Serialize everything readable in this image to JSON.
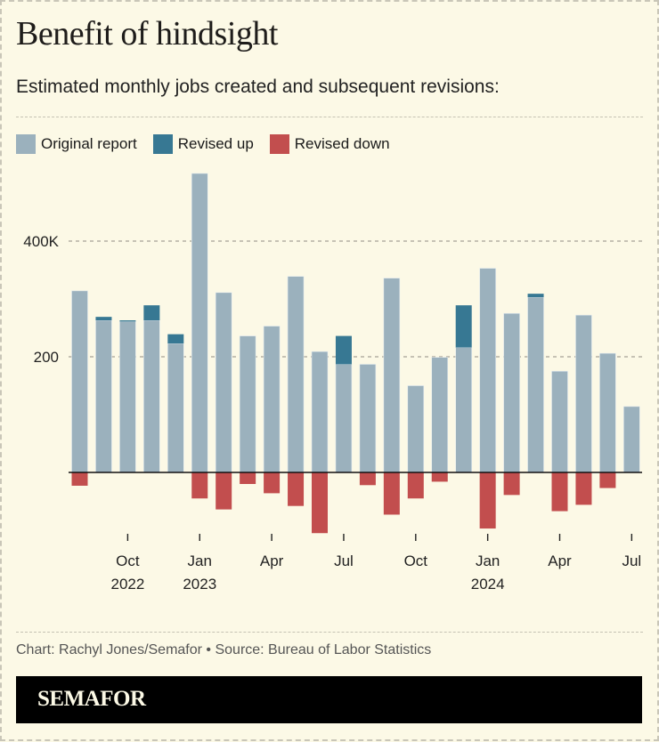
{
  "header": {
    "title": "Benefit of hindsight",
    "subtitle": "Estimated monthly jobs created and subsequent revisions:"
  },
  "legend": [
    {
      "label": "Original report",
      "color": "#9bb1bd"
    },
    {
      "label": "Revised up",
      "color": "#377893"
    },
    {
      "label": "Revised down",
      "color": "#c24e4e"
    }
  ],
  "footer": {
    "credit": "Chart: Rachyl Jones/Semafor • Source: Bureau of Labor Statistics",
    "brand": "SEMAFOR"
  },
  "chart_data": {
    "type": "bar",
    "title": "Benefit of hindsight",
    "subtitle": "Estimated monthly jobs created and subsequent revisions:",
    "xlabel": "",
    "ylabel": "",
    "unit": "thousands of jobs",
    "ylim": [
      -110,
      530
    ],
    "grid": true,
    "legend_position": "top-left",
    "y_ticks": [
      {
        "value": 200,
        "label": "200"
      },
      {
        "value": 400,
        "label": "400K"
      }
    ],
    "x_ticks": [
      {
        "category": "Oct 2022",
        "line1": "Oct",
        "line2": "2022"
      },
      {
        "category": "Jan 2023",
        "line1": "Jan",
        "line2": "2023"
      },
      {
        "category": "Apr 2023",
        "line1": "Apr",
        "line2": ""
      },
      {
        "category": "Jul 2023",
        "line1": "Jul",
        "line2": ""
      },
      {
        "category": "Oct 2023",
        "line1": "Oct",
        "line2": ""
      },
      {
        "category": "Jan 2024",
        "line1": "Jan",
        "line2": "2024"
      },
      {
        "category": "Apr 2024",
        "line1": "Apr",
        "line2": ""
      },
      {
        "category": "Jul 2024",
        "line1": "Jul",
        "line2": ""
      }
    ],
    "categories": [
      "Aug 2022",
      "Sep 2022",
      "Oct 2022",
      "Nov 2022",
      "Dec 2022",
      "Jan 2023",
      "Feb 2023",
      "Mar 2023",
      "Apr 2023",
      "May 2023",
      "Jun 2023",
      "Jul 2023",
      "Aug 2023",
      "Sep 2023",
      "Oct 2023",
      "Nov 2023",
      "Dec 2023",
      "Jan 2024",
      "Feb 2024",
      "Mar 2024",
      "Apr 2024",
      "May 2024",
      "Jun 2024",
      "Jul 2024"
    ],
    "series": [
      {
        "name": "Original report",
        "color": "#9bb1bd",
        "values": [
          314,
          263,
          261,
          263,
          223,
          517,
          311,
          236,
          253,
          339,
          209,
          187,
          187,
          336,
          150,
          199,
          216,
          353,
          275,
          303,
          175,
          272,
          206,
          114
        ]
      },
      {
        "name": "Revised up",
        "color": "#377893",
        "values": [
          0,
          6,
          2,
          26,
          16,
          0,
          0,
          0,
          0,
          0,
          0,
          49,
          0,
          0,
          0,
          0,
          73,
          0,
          0,
          6,
          0,
          0,
          0,
          0
        ]
      },
      {
        "name": "Revised down",
        "color": "#c24e4e",
        "values": [
          -23,
          0,
          0,
          0,
          0,
          -45,
          -64,
          -20,
          -36,
          -58,
          -105,
          0,
          -22,
          -73,
          -45,
          -16,
          0,
          -97,
          -39,
          0,
          -67,
          -56,
          -27,
          0
        ]
      }
    ]
  }
}
